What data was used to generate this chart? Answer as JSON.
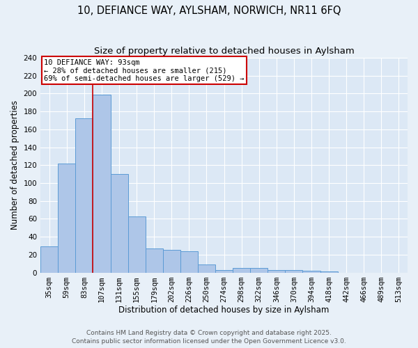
{
  "title1": "10, DEFIANCE WAY, AYLSHAM, NORWICH, NR11 6FQ",
  "title2": "Size of property relative to detached houses in Aylsham",
  "xlabel": "Distribution of detached houses by size in Aylsham",
  "ylabel": "Number of detached properties",
  "categories": [
    "35sqm",
    "59sqm",
    "83sqm",
    "107sqm",
    "131sqm",
    "155sqm",
    "179sqm",
    "202sqm",
    "226sqm",
    "250sqm",
    "274sqm",
    "298sqm",
    "322sqm",
    "346sqm",
    "370sqm",
    "394sqm",
    "418sqm",
    "442sqm",
    "466sqm",
    "489sqm",
    "513sqm"
  ],
  "values": [
    29,
    122,
    172,
    199,
    110,
    63,
    27,
    25,
    24,
    9,
    3,
    5,
    5,
    3,
    3,
    2,
    1,
    0,
    0,
    0,
    0
  ],
  "bar_color": "#aec6e8",
  "bar_edge_color": "#5b9bd5",
  "annotation_box_text": "10 DEFIANCE WAY: 93sqm\n← 28% of detached houses are smaller (215)\n69% of semi-detached houses are larger (529) →",
  "annotation_box_color": "#cc0000",
  "redline_x": 2.5,
  "ylim": [
    0,
    240
  ],
  "yticks": [
    0,
    20,
    40,
    60,
    80,
    100,
    120,
    140,
    160,
    180,
    200,
    220,
    240
  ],
  "footer1": "Contains HM Land Registry data © Crown copyright and database right 2025.",
  "footer2": "Contains public sector information licensed under the Open Government Licence v3.0.",
  "background_color": "#e8f0f8",
  "plot_background": "#dce8f5",
  "title_fontsize": 10.5,
  "subtitle_fontsize": 9.5,
  "axis_label_fontsize": 8.5,
  "tick_fontsize": 7.5,
  "annotation_fontsize": 7.5,
  "footer_fontsize": 6.5
}
